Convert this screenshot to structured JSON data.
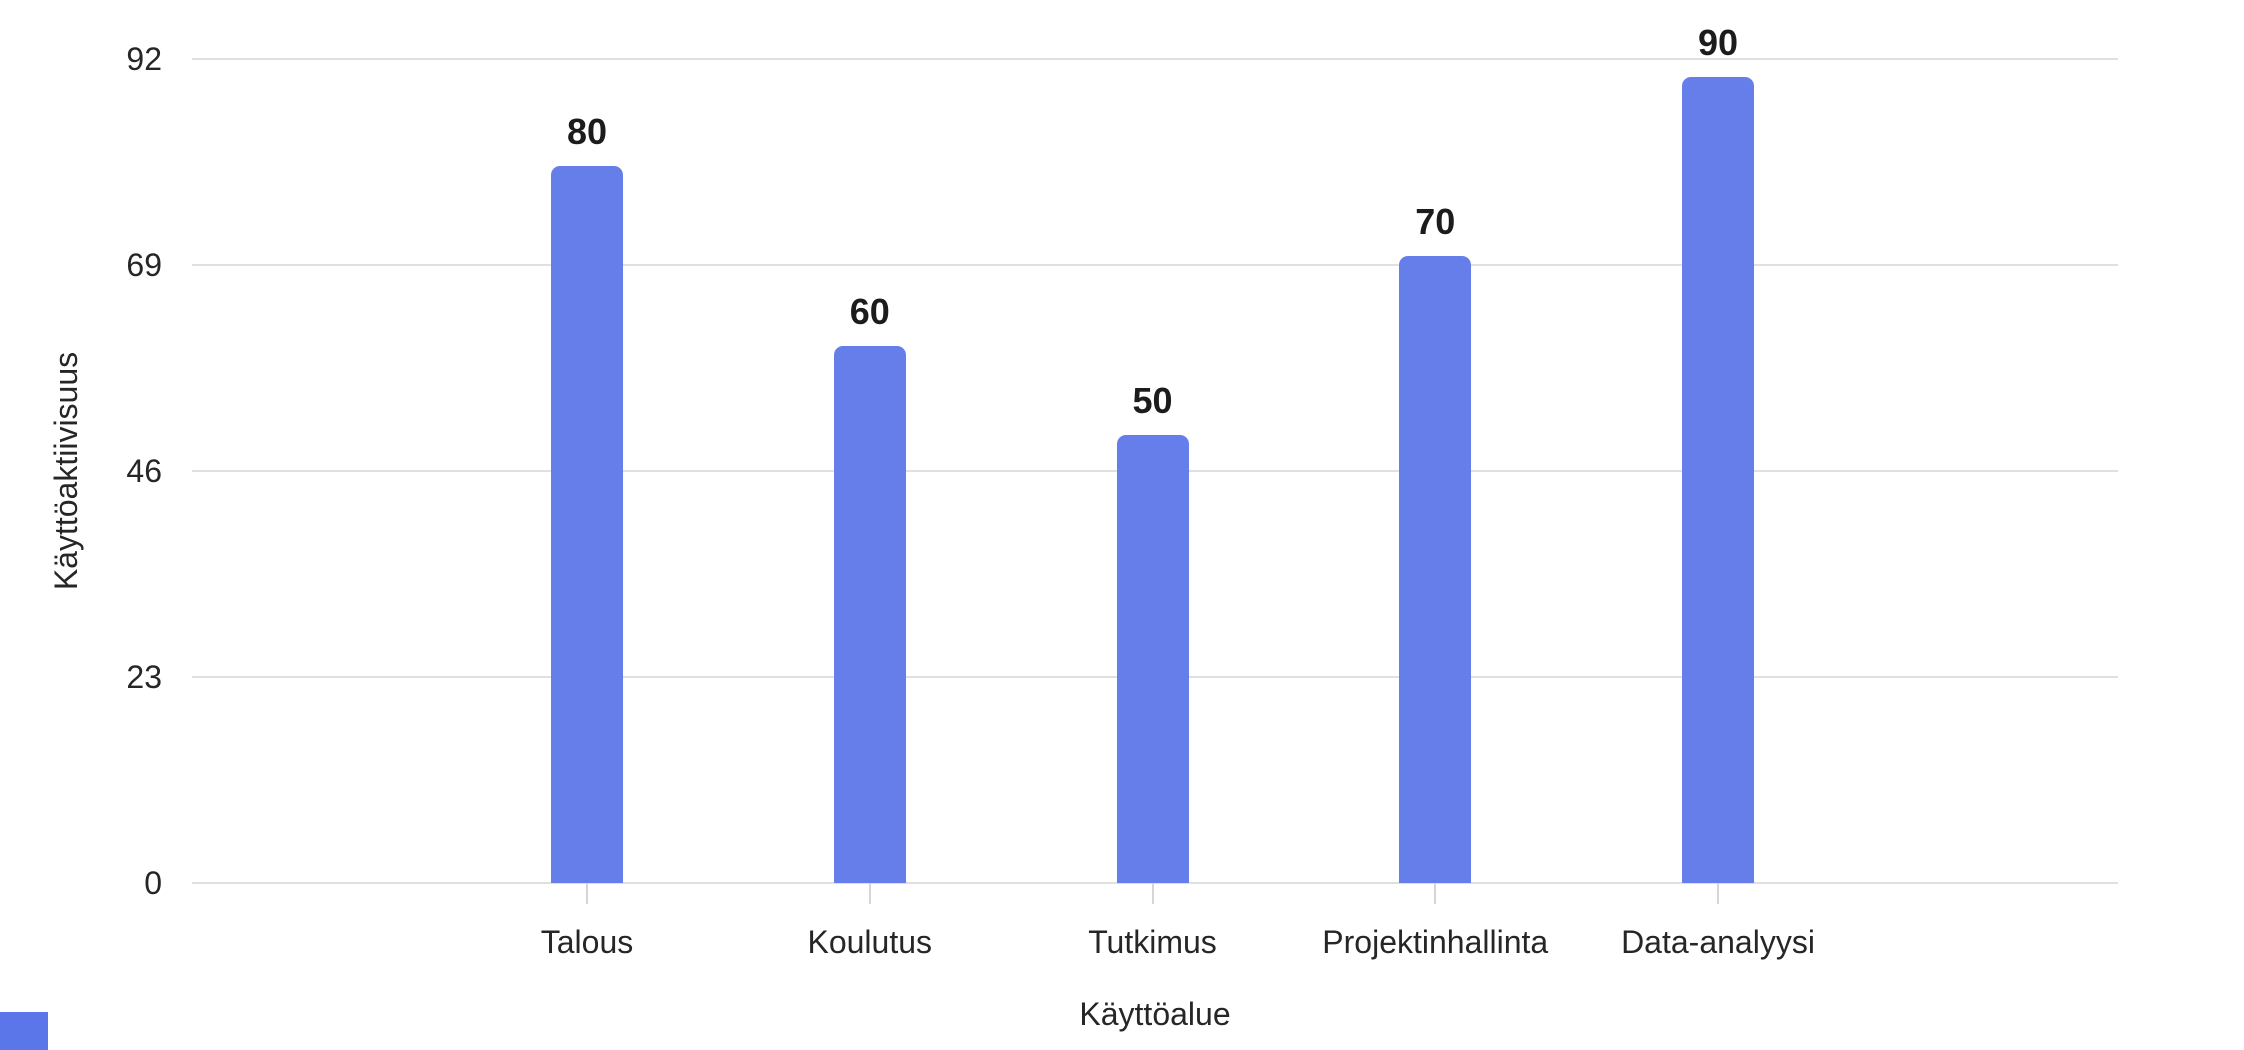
{
  "page": {
    "background_color": "#ffffff"
  },
  "chart_data": {
    "type": "bar",
    "categories": [
      "Talous",
      "Koulutus",
      "Tutkimus",
      "Projektinhallinta",
      "Data-analyysi"
    ],
    "values": [
      80,
      60,
      50,
      70,
      90
    ],
    "value_labels": [
      "80",
      "60",
      "50",
      "70",
      "90"
    ],
    "ytick_labels": [
      "0",
      "23",
      "46",
      "69",
      "92"
    ],
    "yticks": [
      0,
      23,
      46,
      69,
      92
    ],
    "ylim": [
      0,
      92
    ],
    "xlabel": "Käyttöalue",
    "ylabel": "Käyttöaktiivisuus",
    "grid": true,
    "legend_position": "none",
    "bar_color": "#667ee9",
    "gridline_color": "#e0e0e0",
    "axis_tick_color": "#d6d6d6",
    "text_color": "#262626"
  },
  "corner_fragment": {
    "color": "#5b76e8"
  }
}
